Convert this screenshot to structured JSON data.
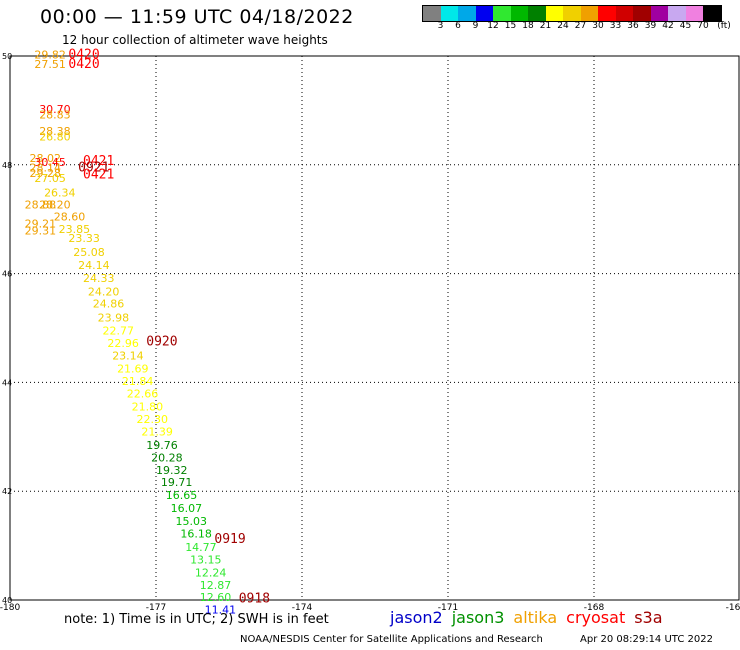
{
  "header": {
    "title": "00:00 — 11:59 UTC 04/18/2022",
    "subtitle": "12 hour collection of altimeter wave heights"
  },
  "colorbar": {
    "colors": [
      "#808080",
      "#00e8e8",
      "#00a8e8",
      "#0000f0",
      "#30e830",
      "#00b800",
      "#008000",
      "#ffff00",
      "#f0d000",
      "#f0a000",
      "#ff0000",
      "#d00000",
      "#a00000",
      "#a000a0",
      "#c8a8f0",
      "#f080e0",
      "#000000"
    ],
    "labels": [
      "3",
      "6",
      "9",
      "12",
      "15",
      "18",
      "21",
      "24",
      "27",
      "30",
      "33",
      "36",
      "39",
      "42",
      "45",
      "70"
    ],
    "unit": "(ft)"
  },
  "chart_data": {
    "type": "scatter",
    "xlim": [
      -180,
      -165
    ],
    "ylim": [
      40,
      50
    ],
    "xticks": [
      "-180",
      "-177",
      "-174",
      "-171",
      "-168",
      "-16"
    ],
    "yticks": [
      "50",
      "48",
      "46",
      "44",
      "42",
      "40"
    ],
    "points": [
      {
        "lon": -179.5,
        "lat": 49.95,
        "v": "29.82",
        "c": "#f0a000"
      },
      {
        "lon": -179.5,
        "lat": 49.78,
        "v": "27.51",
        "c": "#f0a000"
      },
      {
        "lon": -179.4,
        "lat": 48.95,
        "v": "30.70",
        "c": "#ff0000"
      },
      {
        "lon": -179.4,
        "lat": 48.85,
        "v": "28.83",
        "c": "#f0a000"
      },
      {
        "lon": -179.4,
        "lat": 48.55,
        "v": "28.38",
        "c": "#f0a000"
      },
      {
        "lon": -179.4,
        "lat": 48.45,
        "v": "26.80",
        "c": "#f0d000"
      },
      {
        "lon": -179.6,
        "lat": 48.05,
        "v": "28.02",
        "c": "#f0a000"
      },
      {
        "lon": -179.5,
        "lat": 47.98,
        "v": "30.45",
        "c": "#ff0000"
      },
      {
        "lon": -179.6,
        "lat": 47.88,
        "v": "28.14",
        "c": "#f0a000"
      },
      {
        "lon": -179.6,
        "lat": 47.78,
        "v": "29.28",
        "c": "#f0a000"
      },
      {
        "lon": -179.5,
        "lat": 47.68,
        "v": "27.05",
        "c": "#f0d000"
      },
      {
        "lon": -179.3,
        "lat": 47.42,
        "v": "26.34",
        "c": "#f0d000"
      },
      {
        "lon": -179.4,
        "lat": 47.2,
        "v": "28.20",
        "c": "#f0a000"
      },
      {
        "lon": -179.7,
        "lat": 47.2,
        "v": "28.88",
        "c": "#f0a000"
      },
      {
        "lon": -179.1,
        "lat": 46.98,
        "v": "28.60",
        "c": "#f0a000"
      },
      {
        "lon": -179.7,
        "lat": 46.85,
        "v": "29.21",
        "c": "#f0a000"
      },
      {
        "lon": -179.0,
        "lat": 46.75,
        "v": "23.85",
        "c": "#f0d000"
      },
      {
        "lon": -179.7,
        "lat": 46.72,
        "v": "29.31",
        "c": "#f0a000"
      },
      {
        "lon": -178.8,
        "lat": 46.58,
        "v": "23.33",
        "c": "#f0d000"
      },
      {
        "lon": -178.7,
        "lat": 46.32,
        "v": "25.08",
        "c": "#f0d000"
      },
      {
        "lon": -178.6,
        "lat": 46.08,
        "v": "24.14",
        "c": "#f0d000"
      },
      {
        "lon": -178.5,
        "lat": 45.85,
        "v": "24.33",
        "c": "#f0d000"
      },
      {
        "lon": -178.4,
        "lat": 45.6,
        "v": "24.20",
        "c": "#f0d000"
      },
      {
        "lon": -178.3,
        "lat": 45.38,
        "v": "24.86",
        "c": "#f0d000"
      },
      {
        "lon": -178.2,
        "lat": 45.12,
        "v": "23.98",
        "c": "#f0d000"
      },
      {
        "lon": -178.1,
        "lat": 44.88,
        "v": "22.77",
        "c": "#ffff00"
      },
      {
        "lon": -178.0,
        "lat": 44.65,
        "v": "22.96",
        "c": "#ffff00"
      },
      {
        "lon": -177.9,
        "lat": 44.42,
        "v": "23.14",
        "c": "#f0d000"
      },
      {
        "lon": -177.8,
        "lat": 44.18,
        "v": "21.69",
        "c": "#ffff00"
      },
      {
        "lon": -177.7,
        "lat": 43.95,
        "v": "21.84",
        "c": "#ffff00"
      },
      {
        "lon": -177.6,
        "lat": 43.72,
        "v": "22.66",
        "c": "#ffff00"
      },
      {
        "lon": -177.5,
        "lat": 43.48,
        "v": "21.80",
        "c": "#ffff00"
      },
      {
        "lon": -177.4,
        "lat": 43.25,
        "v": "22.30",
        "c": "#ffff00"
      },
      {
        "lon": -177.3,
        "lat": 43.02,
        "v": "21.39",
        "c": "#ffff00"
      },
      {
        "lon": -177.2,
        "lat": 42.78,
        "v": "19.76",
        "c": "#008000"
      },
      {
        "lon": -177.1,
        "lat": 42.55,
        "v": "20.28",
        "c": "#008000"
      },
      {
        "lon": -177.0,
        "lat": 42.32,
        "v": "19.32",
        "c": "#008000"
      },
      {
        "lon": -176.9,
        "lat": 42.1,
        "v": "19.71",
        "c": "#008000"
      },
      {
        "lon": -176.8,
        "lat": 41.86,
        "v": "16.65",
        "c": "#00b800"
      },
      {
        "lon": -176.7,
        "lat": 41.62,
        "v": "16.07",
        "c": "#00b800"
      },
      {
        "lon": -176.6,
        "lat": 41.38,
        "v": "15.03",
        "c": "#00b800"
      },
      {
        "lon": -176.5,
        "lat": 41.15,
        "v": "16.18",
        "c": "#00b800"
      },
      {
        "lon": -176.4,
        "lat": 40.9,
        "v": "14.77",
        "c": "#30e830"
      },
      {
        "lon": -176.3,
        "lat": 40.67,
        "v": "13.15",
        "c": "#30e830"
      },
      {
        "lon": -176.2,
        "lat": 40.43,
        "v": "12.24",
        "c": "#30e830"
      },
      {
        "lon": -176.1,
        "lat": 40.2,
        "v": "12.87",
        "c": "#30e830"
      },
      {
        "lon": -176.1,
        "lat": 39.98,
        "v": "12.60",
        "c": "#30e830"
      },
      {
        "lon": -176.0,
        "lat": 39.75,
        "v": "11.41",
        "c": "#0000f0"
      }
    ],
    "annotations": [
      {
        "lon": -178.8,
        "lat": 49.95,
        "v": "0420",
        "c": "#ff0000"
      },
      {
        "lon": -178.8,
        "lat": 49.78,
        "v": "0420",
        "c": "#ff0000"
      },
      {
        "lon": -178.5,
        "lat": 48.0,
        "v": "0421",
        "c": "#ff0000"
      },
      {
        "lon": -178.6,
        "lat": 47.88,
        "v": "0921",
        "c": "#a00000"
      },
      {
        "lon": -178.5,
        "lat": 47.75,
        "v": "0421",
        "c": "#ff0000"
      },
      {
        "lon": -177.2,
        "lat": 44.68,
        "v": "0920",
        "c": "#a00000"
      },
      {
        "lon": -175.8,
        "lat": 41.05,
        "v": "0919",
        "c": "#a00000"
      },
      {
        "lon": -175.3,
        "lat": 39.95,
        "v": "0918",
        "c": "#a00000"
      }
    ]
  },
  "footer": {
    "note": "note: 1) Time is in UTC; 2) SWH is in feet",
    "satellites": [
      {
        "name": "jason2",
        "color": "#0000c8"
      },
      {
        "name": "jason3",
        "color": "#009000"
      },
      {
        "name": "altika",
        "color": "#f0a000"
      },
      {
        "name": "cryosat",
        "color": "#ff0000"
      },
      {
        "name": "s3a",
        "color": "#a00000"
      }
    ],
    "credit": "NOAA/NESDIS Center for Satellite Applications and Research",
    "timestamp": "Apr 20 08:29:14 UTC 2022"
  }
}
